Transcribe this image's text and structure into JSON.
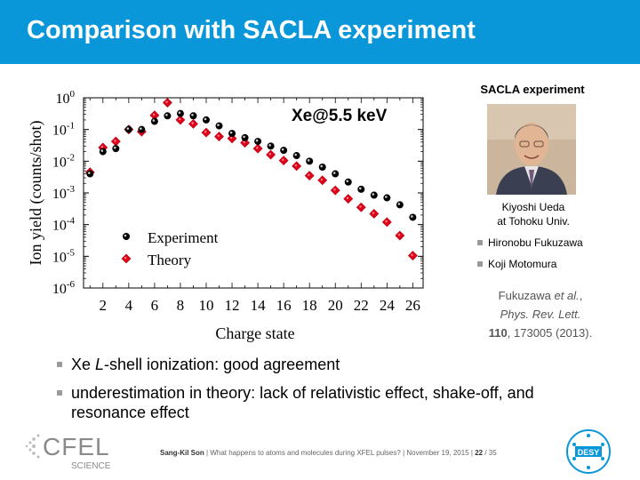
{
  "slide": {
    "title": "Comparison with SACLA experiment",
    "sacla_header": "SACLA experiment",
    "photo_caption_line1": "Kiyoshi Ueda",
    "photo_caption_line2": "at Tohoku Univ.",
    "people": [
      "Hironobu Fukuzawa",
      "Koji Motomura"
    ],
    "reference": {
      "authors": "Fukuzawa ",
      "et_al": "et al.",
      "comma": ",",
      "journal": "Phys. Rev. Lett.",
      "volume": "110",
      "rest": ", 173005 (2013)."
    },
    "bullets": [
      {
        "prefix": "Xe ",
        "italic": "L",
        "rest": "-shell ionization: good agreement"
      },
      {
        "prefix": "underestimation in theory: lack of relativistic effect, shake-off, and resonance effect",
        "italic": "",
        "rest": ""
      }
    ],
    "footer": {
      "author": "Sang-Kil Son",
      "topic": "What happens to atoms and molecules during XFEL pulses?",
      "date": "November 19, 2015",
      "page": "22",
      "total": "35"
    },
    "logos": {
      "left_text": "CFEL",
      "left_sub": "SCIENCE",
      "right_text": "DESY"
    },
    "colors": {
      "title_bar": "#0a97d9",
      "theory": "#e0001a",
      "experiment": "#000000"
    }
  },
  "chart_data": {
    "type": "scatter",
    "annotation": "Xe@5.5 keV",
    "xlabel": "Charge state",
    "ylabel": "Ion yield (counts/shot)",
    "xlim": [
      0.5,
      26.8
    ],
    "ylim_exponent": [
      -6,
      0
    ],
    "yscale": "log",
    "x_ticks": [
      "2",
      "4",
      "6",
      "8",
      "10",
      "12",
      "14",
      "16",
      "18",
      "20",
      "22",
      "24",
      "26"
    ],
    "y_ticks": [
      {
        "base": "10",
        "exp": "0"
      },
      {
        "base": "10",
        "exp": "-1"
      },
      {
        "base": "10",
        "exp": "-2"
      },
      {
        "base": "10",
        "exp": "-3"
      },
      {
        "base": "10",
        "exp": "-4"
      },
      {
        "base": "10",
        "exp": "-5"
      },
      {
        "base": "10",
        "exp": "-6"
      }
    ],
    "legend_position": "bottom-left",
    "series": [
      {
        "name": "Experiment",
        "x": [
          1,
          2,
          3,
          4,
          5,
          6,
          7,
          8,
          9,
          10,
          11,
          12,
          13,
          14,
          15,
          16,
          17,
          18,
          19,
          20,
          21,
          22,
          23,
          24,
          25,
          26
        ],
        "y": [
          0.004,
          0.02,
          0.025,
          0.1,
          0.1,
          0.18,
          0.27,
          0.32,
          0.27,
          0.2,
          0.13,
          0.075,
          0.055,
          0.042,
          0.03,
          0.022,
          0.015,
          0.01,
          0.0065,
          0.004,
          0.0022,
          0.0013,
          0.00085,
          0.0007,
          0.00042,
          0.00017
        ]
      },
      {
        "name": "Theory",
        "x": [
          1,
          2,
          3,
          4,
          5,
          6,
          7,
          8,
          9,
          10,
          11,
          12,
          13,
          14,
          15,
          16,
          17,
          18,
          19,
          20,
          21,
          22,
          23,
          24,
          25,
          26
        ],
        "y": [
          0.0045,
          0.027,
          0.042,
          0.1,
          0.085,
          0.28,
          0.7,
          0.2,
          0.15,
          0.08,
          0.06,
          0.052,
          0.038,
          0.025,
          0.016,
          0.0105,
          0.007,
          0.0035,
          0.0025,
          0.0012,
          0.00065,
          0.00035,
          0.00022,
          0.00012,
          4.5e-05,
          1.05e-05
        ]
      }
    ]
  }
}
